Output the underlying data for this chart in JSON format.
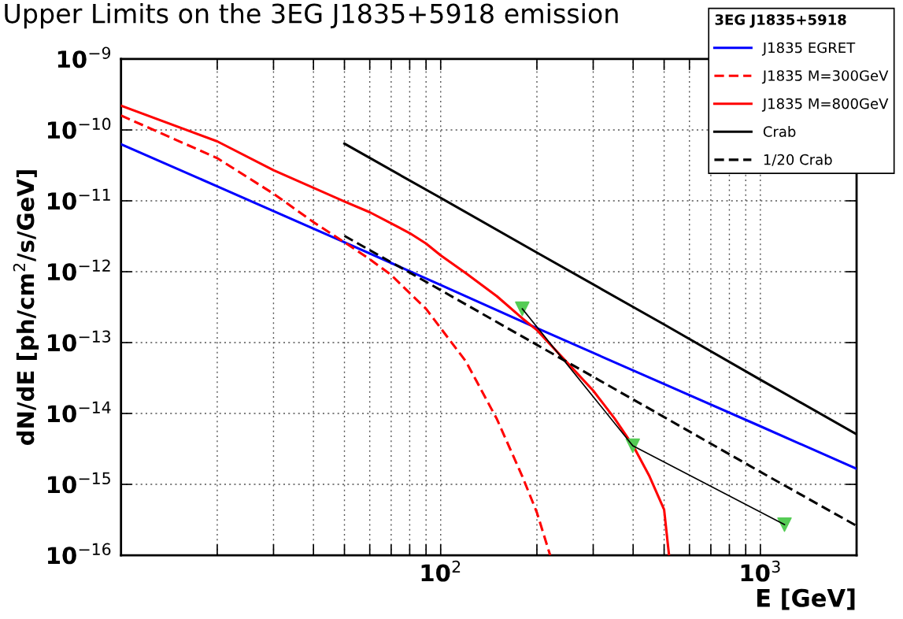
{
  "chart_data": {
    "type": "line",
    "title": "Upper Limits on the 3EG J1835+5918 emission",
    "xlabel": "E [GeV]",
    "ylabel": "dN/dE [ph/cm$^{2}$/s/GeV]",
    "legend_title": "3EG J1835+5918",
    "log": "xy",
    "grid": true,
    "legend": "top right",
    "xlim": [
      10,
      2000
    ],
    "ylim": [
      1e-16,
      1e-09
    ],
    "xticks": [
      {
        "value": 20,
        "label": null
      },
      {
        "value": 30,
        "label": null
      },
      {
        "value": 40,
        "label": null
      },
      {
        "value": 50,
        "label": null
      },
      {
        "value": 60,
        "label": null
      },
      {
        "value": 70,
        "label": null
      },
      {
        "value": 80,
        "label": null
      },
      {
        "value": 90,
        "label": null
      },
      {
        "value": 100,
        "label": "10$^{2}$"
      },
      {
        "value": 200,
        "label": null
      },
      {
        "value": 300,
        "label": null
      },
      {
        "value": 400,
        "label": null
      },
      {
        "value": 500,
        "label": null
      },
      {
        "value": 600,
        "label": null
      },
      {
        "value": 700,
        "label": null
      },
      {
        "value": 800,
        "label": null
      },
      {
        "value": 900,
        "label": null
      },
      {
        "value": 1000,
        "label": "10$^{3}$"
      }
    ],
    "yticks": [
      {
        "value": 1e-16,
        "label": "10$^{−16}$"
      },
      {
        "value": 1e-15,
        "label": "10$^{−15}$"
      },
      {
        "value": 1e-14,
        "label": "10$^{−14}$"
      },
      {
        "value": 1e-13,
        "label": "10$^{−13}$"
      },
      {
        "value": 1e-12,
        "label": "10$^{−12}$"
      },
      {
        "value": 1e-11,
        "label": "10$^{−11}$"
      },
      {
        "value": 1e-10,
        "label": "10$^{−10}$"
      },
      {
        "value": 1e-09,
        "label": "10$^{−9}$"
      }
    ],
    "series": [
      {
        "name": "J1835 EGRET",
        "color": "#0000ff",
        "line_style": "solid",
        "marker": "none",
        "x": [
          10,
          20,
          50,
          100,
          200,
          500,
          1000,
          2000
        ],
        "values": [
          6.3e-11,
          1.6e-11,
          2.6e-12,
          6.5e-13,
          1.6e-13,
          2.6e-14,
          6.6e-15,
          1.66e-15
        ]
      },
      {
        "name": "J1835 M=300GeV",
        "color": "#ff0000",
        "line_style": "dashed",
        "marker": "none",
        "x": [
          10,
          20,
          30,
          40,
          50,
          60,
          70,
          80,
          90,
          100,
          120,
          150,
          180,
          200,
          220
        ],
        "values": [
          1.6e-10,
          4e-11,
          1.26e-11,
          5e-12,
          2.6e-12,
          1.5e-12,
          9e-13,
          5e-13,
          3e-13,
          1.6e-13,
          5.4e-14,
          8.3e-15,
          1.3e-15,
          4e-16,
          1e-16
        ]
      },
      {
        "name": "J1835 M=800GeV",
        "color": "#ff0000",
        "line_style": "solid",
        "marker": "none",
        "x": [
          10,
          20,
          30,
          50,
          60,
          70,
          80,
          90,
          100,
          120,
          150,
          180,
          200,
          250,
          300,
          350,
          400,
          450,
          500,
          518
        ],
        "values": [
          2.2e-10,
          6.9e-11,
          2.7e-11,
          9.8e-12,
          6.9e-12,
          4.8e-12,
          3.5e-12,
          2.5e-12,
          1.7e-12,
          9.5e-13,
          4.5e-13,
          2.2e-13,
          1.5e-13,
          5.1e-14,
          2.1e-14,
          8.5e-15,
          3.5e-15,
          1.3e-15,
          4.4e-16,
          1e-16
        ]
      },
      {
        "name": "Crab",
        "color": "#000000",
        "line_style": "solid",
        "marker": "none",
        "x": [
          50,
          100,
          200,
          500,
          1000,
          2000
        ],
        "values": [
          6.4e-11,
          1.1e-11,
          1.86e-12,
          1.8e-13,
          3e-14,
          5.1e-15
        ]
      },
      {
        "name": "1/20 Crab",
        "color": "#000000",
        "line_style": "dashed",
        "marker": "none",
        "x": [
          50,
          100,
          200,
          500,
          1000,
          2000
        ],
        "values": [
          3.2e-12,
          5.5e-13,
          9.3e-14,
          8.9e-15,
          1.5e-15,
          2.6e-16
        ]
      },
      {
        "color": "#000000",
        "line_style": "solid",
        "marker": "none",
        "x": [
          180,
          399,
          1190
        ],
        "values": [
          3e-13,
          3.5e-15,
          2.7e-16
        ]
      },
      {
        "type": "scatter",
        "color": "#55cc55",
        "marker": "triangle",
        "x": [
          180,
          399,
          1190
        ],
        "values": [
          3e-13,
          3.5e-15,
          2.7e-16
        ]
      }
    ]
  }
}
